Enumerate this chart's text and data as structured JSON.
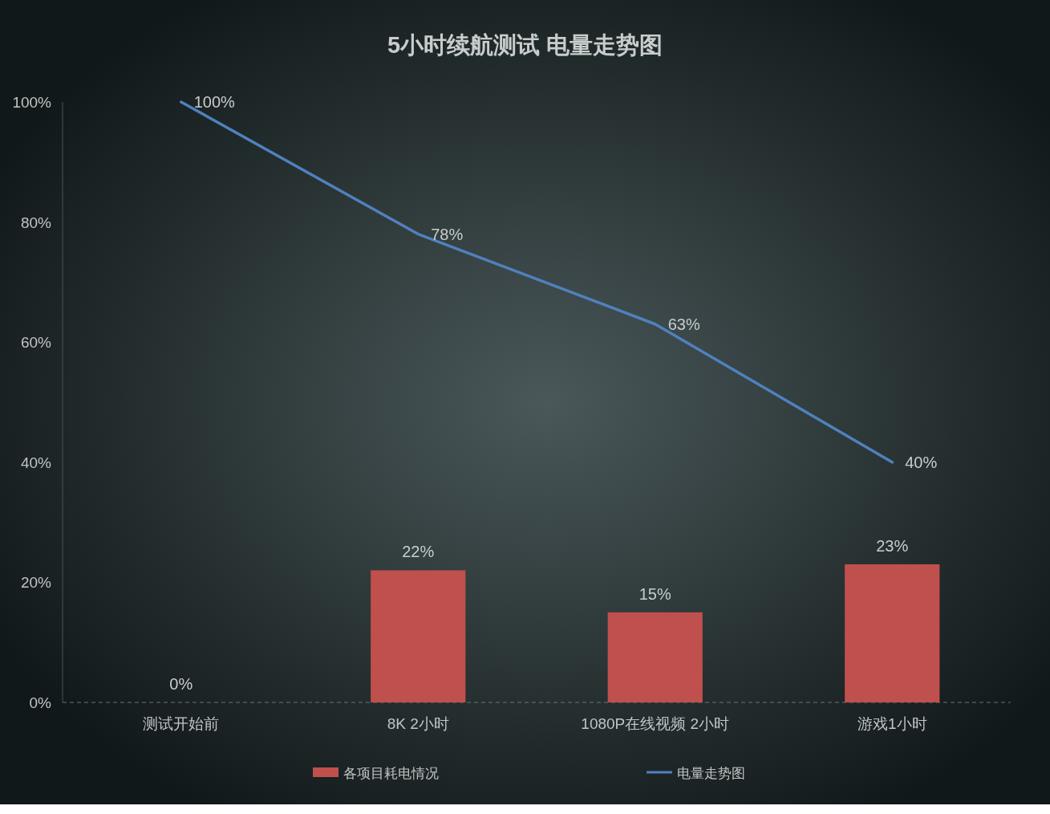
{
  "chart_data": {
    "type": "bar",
    "title": "5小时续航测试  电量走势图",
    "categories": [
      "测试开始前",
      "8K  2小时",
      "1080P在线视频 2小时",
      "游戏1小时"
    ],
    "series": [
      {
        "name": "各项目耗电情况",
        "color": "#c0504d",
        "values": [
          0,
          22,
          15,
          23
        ],
        "value_labels": [
          "0%",
          "22%",
          "15%",
          "23%"
        ]
      },
      {
        "name": "电量走势图",
        "type": "line",
        "color": "#4f81bd",
        "values": [
          100,
          78,
          63,
          40
        ],
        "value_labels": [
          "100%",
          "78%",
          "63%",
          "40%"
        ]
      }
    ],
    "ylim": [
      0,
      100
    ],
    "yticks": [
      {
        "value": 0,
        "label": "0%"
      },
      {
        "value": 20,
        "label": "20%"
      },
      {
        "value": 40,
        "label": "40%"
      },
      {
        "value": 60,
        "label": "60%"
      },
      {
        "value": 80,
        "label": "80%"
      },
      {
        "value": 100,
        "label": "100%"
      }
    ],
    "legend": "bottom",
    "marker": "none",
    "line_style": "solid"
  }
}
